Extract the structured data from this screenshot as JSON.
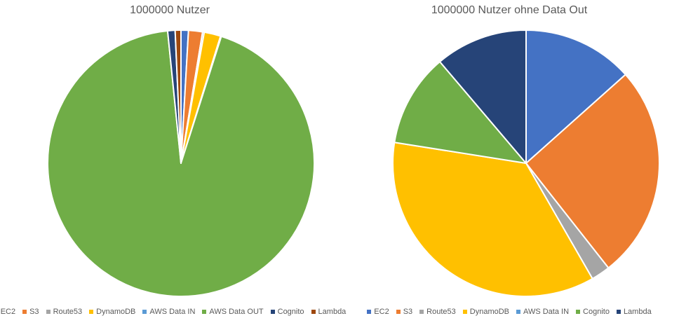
{
  "chart_data": [
    {
      "type": "pie",
      "title": "1000000 Nutzer",
      "legend_position": "bottom",
      "categories": [
        "EC2",
        "S3",
        "Route53",
        "DynamoDB",
        "AWS Data IN",
        "AWS Data OUT",
        "Cognito",
        "Lambda"
      ],
      "values": [
        0.9,
        1.7,
        0.2,
        2.0,
        0.1,
        93.5,
        0.9,
        0.7
      ],
      "colors": [
        "#4472C4",
        "#ED7D31",
        "#A5A5A5",
        "#FFC000",
        "#5B9BD5",
        "#70AD47",
        "#264478",
        "#9E480E"
      ]
    },
    {
      "type": "pie",
      "title": "1000000 Nutzer ohne Data Out",
      "legend_position": "bottom",
      "categories": [
        "EC2",
        "S3",
        "Route53",
        "DynamoDB",
        "AWS Data IN",
        "Cognito",
        "Lambda"
      ],
      "values": [
        13.4,
        26.0,
        2.3,
        35.8,
        0.0,
        11.3,
        11.2
      ],
      "colors": [
        "#4472C4",
        "#ED7D31",
        "#A5A5A5",
        "#FFC000",
        "#5B9BD5",
        "#70AD47",
        "#264478"
      ]
    }
  ]
}
